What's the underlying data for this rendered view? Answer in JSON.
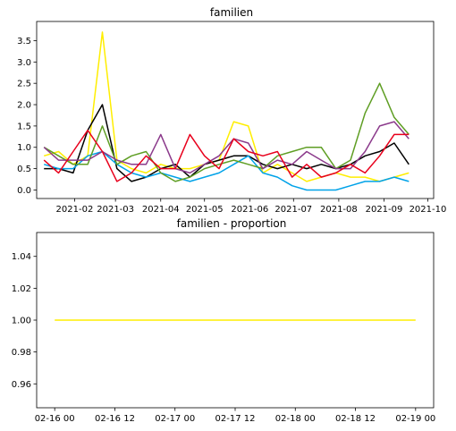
{
  "chart_data": [
    {
      "type": "line",
      "title": "familien",
      "xlabel": "",
      "ylabel": "",
      "x_tick_labels": [
        "2021-02",
        "2021-03",
        "2021-04",
        "2021-05",
        "2021-06",
        "2021-07",
        "2021-08",
        "2021-09",
        "2021-10"
      ],
      "x_tick_dates": [
        "2021-02-01",
        "2021-03-01",
        "2021-04-01",
        "2021-05-01",
        "2021-06-01",
        "2021-07-01",
        "2021-08-01",
        "2021-09-01",
        "2021-10-01"
      ],
      "xlim": [
        "2021-01-06",
        "2021-10-05"
      ],
      "y_tick_labels": [
        "0.0",
        "0.5",
        "1.0",
        "1.5",
        "2.0",
        "2.5",
        "3.0",
        "3.5"
      ],
      "ylim": [
        -0.2,
        3.95
      ],
      "grid": false,
      "x": [
        "2021-01-11",
        "2021-01-21",
        "2021-01-31",
        "2021-02-10",
        "2021-02-20",
        "2021-03-02",
        "2021-03-12",
        "2021-03-22",
        "2021-04-01",
        "2021-04-11",
        "2021-04-21",
        "2021-05-01",
        "2021-05-11",
        "2021-05-21",
        "2021-05-31",
        "2021-06-10",
        "2021-06-20",
        "2021-06-30",
        "2021-07-10",
        "2021-07-20",
        "2021-07-30",
        "2021-08-09",
        "2021-08-19",
        "2021-08-29",
        "2021-09-08",
        "2021-09-18"
      ],
      "series": [
        {
          "color": "#ffee00",
          "values": [
            0.8,
            0.9,
            0.6,
            0.8,
            3.7,
            0.7,
            0.5,
            0.4,
            0.6,
            0.5,
            0.5,
            0.6,
            0.7,
            1.6,
            1.5,
            0.4,
            0.6,
            0.4,
            0.2,
            0.3,
            0.4,
            0.3,
            0.3,
            0.2,
            0.3,
            0.4
          ]
        },
        {
          "color": "#000000",
          "values": [
            0.5,
            0.5,
            0.4,
            1.4,
            2.0,
            0.5,
            0.2,
            0.3,
            0.5,
            0.6,
            0.3,
            0.6,
            0.7,
            0.8,
            0.8,
            0.6,
            0.5,
            0.6,
            0.5,
            0.6,
            0.5,
            0.6,
            0.8,
            0.9,
            1.1,
            0.6
          ]
        },
        {
          "color": "#00a2e8",
          "values": [
            0.6,
            0.5,
            0.5,
            0.8,
            0.9,
            0.6,
            0.4,
            0.3,
            0.4,
            0.3,
            0.2,
            0.3,
            0.4,
            0.6,
            0.8,
            0.4,
            0.3,
            0.1,
            0.0,
            0.0,
            0.0,
            0.1,
            0.2,
            0.2,
            0.3,
            0.2
          ]
        },
        {
          "color": "#5f9e24",
          "values": [
            1.0,
            0.8,
            0.6,
            0.6,
            1.5,
            0.6,
            0.8,
            0.9,
            0.4,
            0.2,
            0.3,
            0.5,
            0.6,
            0.7,
            0.6,
            0.5,
            0.8,
            0.9,
            1.0,
            1.0,
            0.5,
            0.7,
            1.8,
            2.5,
            1.7,
            1.3
          ]
        },
        {
          "color": "#8b3a8b",
          "values": [
            1.0,
            0.7,
            0.7,
            0.7,
            0.9,
            0.7,
            0.6,
            0.6,
            1.3,
            0.5,
            0.4,
            0.6,
            0.8,
            1.2,
            1.1,
            0.5,
            0.7,
            0.6,
            0.9,
            0.7,
            0.5,
            0.5,
            0.9,
            1.5,
            1.6,
            1.2
          ]
        },
        {
          "color": "#e8001c",
          "values": [
            0.7,
            0.4,
            0.9,
            1.4,
            0.9,
            0.2,
            0.4,
            0.8,
            0.5,
            0.5,
            1.3,
            0.8,
            0.5,
            1.2,
            0.9,
            0.8,
            0.9,
            0.3,
            0.6,
            0.3,
            0.4,
            0.6,
            0.4,
            0.8,
            1.3,
            1.3
          ]
        }
      ]
    },
    {
      "type": "line",
      "title": "familien - proportion",
      "xlabel": "",
      "ylabel": "",
      "x_tick_labels": [
        "02-16 00",
        "02-16 12",
        "02-17 00",
        "02-17 12",
        "02-18 00",
        "02-18 12",
        "02-19 00"
      ],
      "x_tick_values": [
        0,
        12,
        24,
        36,
        48,
        60,
        72
      ],
      "xlim": [
        -3.6,
        75.6
      ],
      "y_tick_labels": [
        "0.96",
        "0.98",
        "1.00",
        "1.02",
        "1.04"
      ],
      "ylim": [
        0.945,
        1.055
      ],
      "grid": false,
      "x": [
        0,
        72
      ],
      "series": [
        {
          "color": "#ffee00",
          "values": [
            1.0,
            1.0
          ]
        }
      ]
    }
  ]
}
